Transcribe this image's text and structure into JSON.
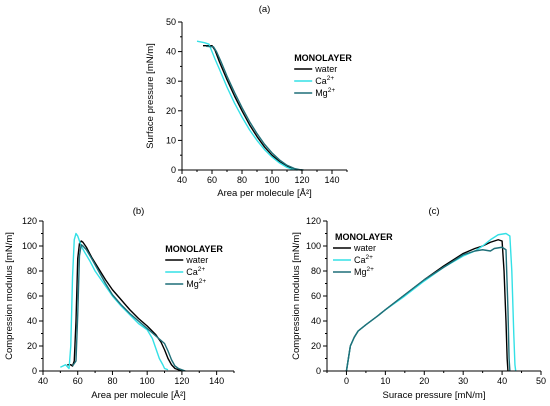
{
  "chart_data": [
    {
      "type": "line",
      "panel_label": "(a)",
      "xlabel": "Area per molecule [Å²]",
      "ylabel": "Surface pressure [mN/m]",
      "xlim": [
        40,
        150
      ],
      "ylim": [
        0,
        50
      ],
      "xticks": [
        40,
        60,
        80,
        100,
        120,
        140
      ],
      "yticks": [
        0,
        10,
        20,
        30,
        40,
        50
      ],
      "legend": {
        "title": "MONOLAYER",
        "position": "top-right"
      },
      "series": [
        {
          "name": "water",
          "color": "#000000",
          "x": [
            54,
            60,
            62,
            65,
            70,
            75,
            80,
            85,
            90,
            95,
            100,
            105,
            110,
            115,
            118,
            120
          ],
          "y": [
            42,
            42,
            40.5,
            36.5,
            30.5,
            25,
            20,
            15.3,
            11.3,
            7.8,
            5,
            2.8,
            1.2,
            0.3,
            0.05,
            0
          ]
        },
        {
          "name": "Ca2+",
          "color": "#33e0e6",
          "x": [
            50,
            55,
            58,
            60,
            62,
            65,
            70,
            75,
            80,
            85,
            90,
            95,
            100,
            105,
            110,
            113,
            115,
            117
          ],
          "y": [
            43.5,
            43,
            42.5,
            40,
            37.5,
            34,
            28,
            22.6,
            17.9,
            13.6,
            10,
            6.9,
            4.4,
            2.4,
            0.9,
            0.3,
            0.1,
            0
          ]
        },
        {
          "name": "Mg2+",
          "color": "#1f6f78",
          "x": [
            56,
            61,
            63,
            66,
            70,
            75,
            80,
            85,
            90,
            95,
            100,
            105,
            110,
            115,
            119,
            121
          ],
          "y": [
            41.8,
            41.6,
            40,
            36.6,
            31.7,
            26.2,
            21.1,
            16.4,
            12.3,
            8.7,
            5.8,
            3.4,
            1.6,
            0.5,
            0.08,
            0
          ]
        }
      ]
    },
    {
      "type": "line",
      "panel_label": "(b)",
      "xlabel": "Area per molecule [Å²]",
      "ylabel": "Compression modulus [mN/m]",
      "xlim": [
        40,
        150
      ],
      "ylim": [
        0,
        120
      ],
      "xticks": [
        40,
        60,
        80,
        100,
        120,
        140
      ],
      "yticks": [
        0,
        20,
        40,
        60,
        80,
        100,
        120
      ],
      "legend": {
        "title": "MONOLAYER",
        "position": "top-right"
      },
      "series": [
        {
          "name": "water",
          "color": "#000000",
          "x": [
            54,
            56,
            57,
            58,
            59,
            60,
            61,
            62,
            63,
            65,
            68,
            72,
            76,
            80,
            85,
            90,
            95,
            100,
            105,
            108,
            110,
            112,
            114,
            116,
            118,
            120
          ],
          "y": [
            5,
            5,
            4,
            8,
            40,
            90,
            102,
            104,
            103,
            99,
            91,
            82,
            73,
            65,
            57,
            49,
            42,
            36,
            29,
            23,
            17,
            10,
            5,
            2,
            1,
            0
          ]
        },
        {
          "name": "Ca2+",
          "color": "#33e0e6",
          "x": [
            50,
            53,
            55,
            56,
            57,
            58,
            59,
            60,
            61,
            62,
            64,
            67,
            70,
            75,
            80,
            85,
            90,
            95,
            100,
            103,
            105,
            107,
            109,
            110,
            112
          ],
          "y": [
            3,
            5,
            2,
            20,
            75,
            105,
            110,
            108,
            104,
            100,
            95,
            88,
            80,
            70,
            60,
            52,
            45,
            38,
            33,
            26,
            18,
            10,
            5,
            2,
            1
          ]
        },
        {
          "name": "Mg2+",
          "color": "#1f6f78",
          "x": [
            57,
            59,
            60,
            61,
            62,
            63,
            65,
            68,
            72,
            76,
            80,
            85,
            90,
            95,
            100,
            105,
            110,
            112,
            114,
            116,
            118,
            120,
            122
          ],
          "y": [
            4,
            8,
            45,
            92,
            101,
            100,
            97,
            90,
            80,
            70,
            61,
            53,
            46,
            40,
            34,
            28,
            22,
            16,
            9,
            4,
            2,
            1,
            0
          ]
        }
      ]
    },
    {
      "type": "line",
      "panel_label": "(c)",
      "xlabel": "Surace pressure [mN/m]",
      "ylabel": "Compression modulus [mN/m]",
      "xlim": [
        -5,
        50
      ],
      "ylim": [
        0,
        120
      ],
      "xticks": [
        0,
        10,
        20,
        30,
        40,
        50
      ],
      "yticks": [
        0,
        20,
        40,
        60,
        80,
        100,
        120
      ],
      "legend": {
        "title": "MONOLAYER",
        "position": "top-left"
      },
      "series": [
        {
          "name": "water",
          "color": "#000000",
          "x": [
            0,
            0.5,
            1,
            2,
            3,
            5,
            8,
            10,
            15,
            20,
            25,
            30,
            33,
            35,
            37,
            39,
            40,
            40.5,
            41,
            41.3,
            41.5
          ],
          "y": [
            0,
            10,
            20,
            27,
            32,
            37,
            44,
            49,
            61,
            73,
            84,
            94,
            98,
            100,
            103,
            105,
            104,
            80,
            40,
            10,
            0
          ]
        },
        {
          "name": "Ca2+",
          "color": "#33e0e6",
          "x": [
            0,
            0.5,
            1,
            2,
            3,
            5,
            8,
            10,
            15,
            20,
            25,
            30,
            33,
            35,
            37,
            39,
            41,
            42,
            42.5,
            43,
            43.3,
            43.5
          ],
          "y": [
            0,
            10,
            20,
            27,
            32,
            37,
            44,
            49,
            60,
            72,
            83,
            92,
            96,
            100,
            105,
            109,
            110,
            108,
            80,
            30,
            5,
            0
          ]
        },
        {
          "name": "Mg2+",
          "color": "#1f6f78",
          "x": [
            0,
            0.5,
            1,
            2,
            3,
            5,
            8,
            10,
            15,
            20,
            25,
            30,
            33,
            35,
            37,
            38,
            40,
            41,
            41.5,
            41.8,
            42
          ],
          "y": [
            0,
            10,
            20,
            27,
            32,
            37,
            44,
            49,
            61,
            73,
            83,
            93,
            96,
            97,
            96,
            98,
            99,
            97,
            50,
            10,
            0
          ]
        }
      ]
    }
  ]
}
